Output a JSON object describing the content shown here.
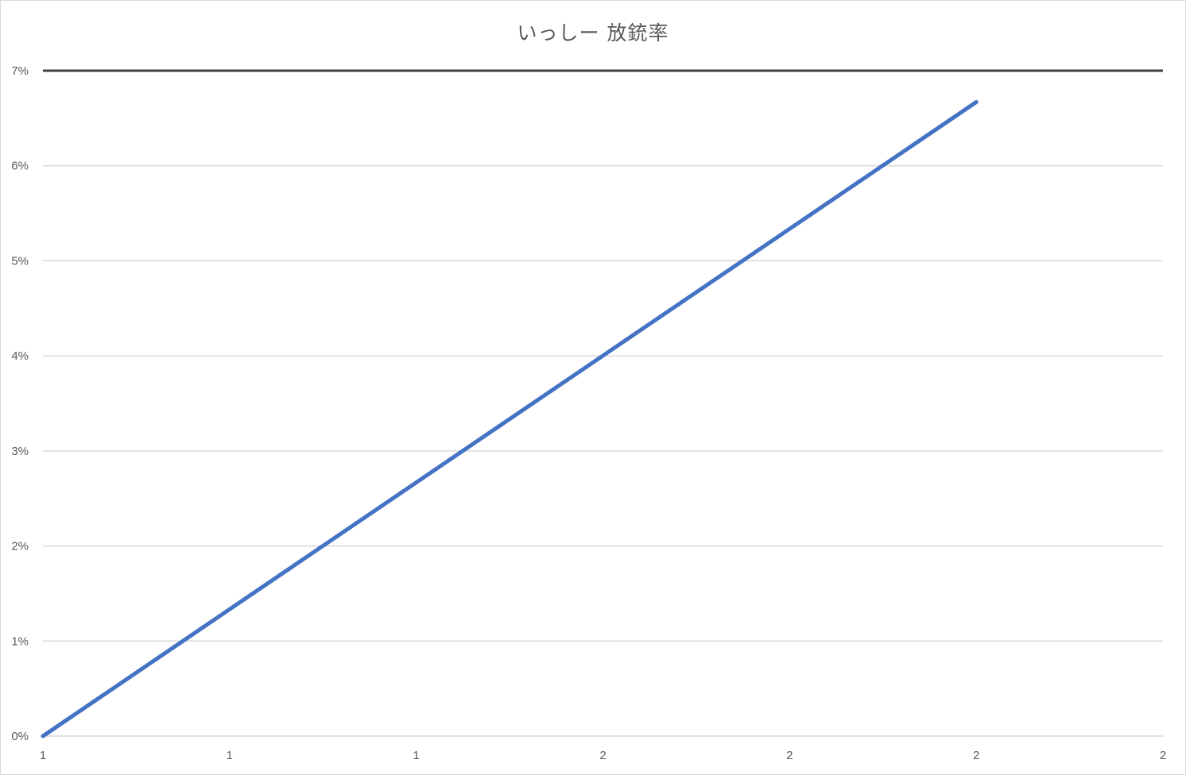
{
  "chart_data": {
    "type": "line",
    "title": "いっしー 放銃率",
    "xlabel": "",
    "ylabel": "",
    "x_tick_labels": [
      "1",
      "1",
      "1",
      "2",
      "2",
      "2",
      "2"
    ],
    "y_tick_labels": [
      "0%",
      "1%",
      "2%",
      "3%",
      "4%",
      "5%",
      "6%",
      "7%"
    ],
    "ylim": [
      0,
      0.07
    ],
    "y_ticks": [
      0,
      0.01,
      0.02,
      0.03,
      0.04,
      0.05,
      0.06,
      0.07
    ],
    "grid": true,
    "series": [
      {
        "color": "#4472c4",
        "points": [
          {
            "tick_position": 0,
            "value": 0.0
          },
          {
            "tick_position": 5,
            "value": 0.0667
          }
        ]
      }
    ],
    "reference_line": {
      "value": 0.07,
      "color": "#404040"
    }
  }
}
